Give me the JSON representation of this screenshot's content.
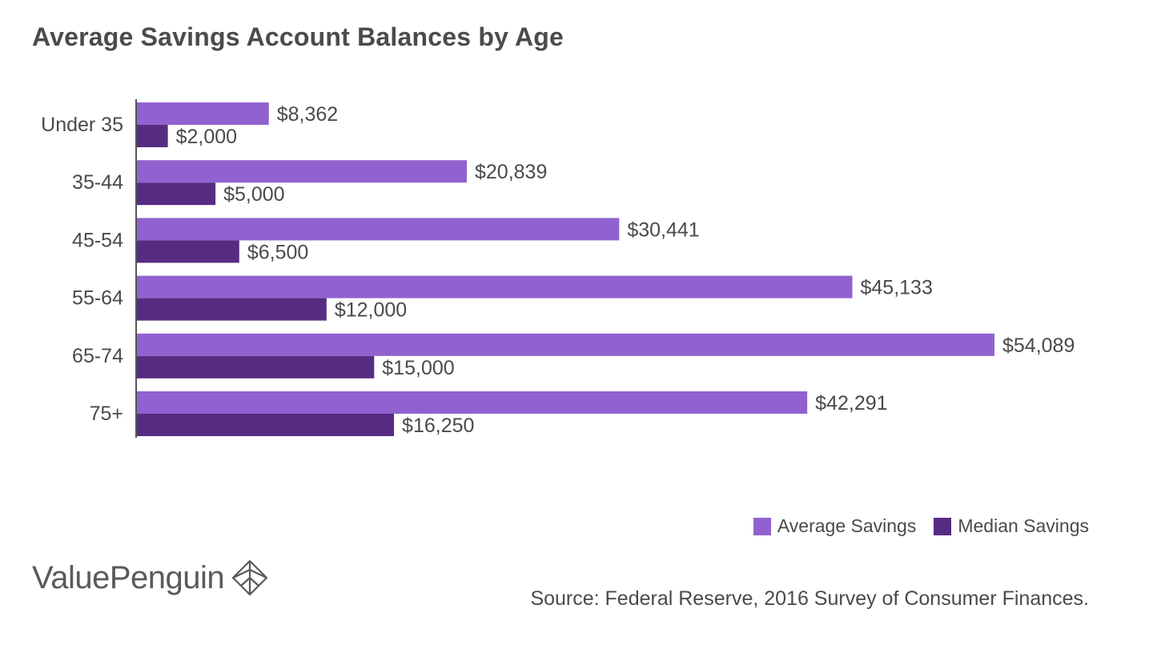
{
  "chart_data": {
    "type": "bar",
    "orientation": "horizontal",
    "title": "Average Savings Account Balances by Age",
    "categories": [
      "Under 35",
      "35-44",
      "45-54",
      "55-64",
      "65-74",
      "75+"
    ],
    "series": [
      {
        "name": "Average Savings",
        "color": "#9162cf",
        "values": [
          8362,
          20839,
          30441,
          45133,
          54089,
          42291
        ],
        "labels": [
          "$8,362",
          "$20,839",
          "$30,441",
          "$45,133",
          "$54,089",
          "$42,291"
        ]
      },
      {
        "name": "Median Savings",
        "color": "#562c82",
        "values": [
          2000,
          5000,
          6500,
          12000,
          15000,
          16250
        ],
        "labels": [
          "$2,000",
          "$5,000",
          "$6,500",
          "$12,000",
          "$15,000",
          "$16,250"
        ]
      }
    ],
    "xlim": [
      0,
      54089
    ],
    "grid": false,
    "legend_position": "bottom-right"
  },
  "footer": {
    "brand": "ValuePenguin",
    "source": "Source: Federal Reserve, 2016 Survey of Consumer Finances."
  },
  "colors": {
    "axis": "#555555",
    "text": "#4a4a4a"
  }
}
